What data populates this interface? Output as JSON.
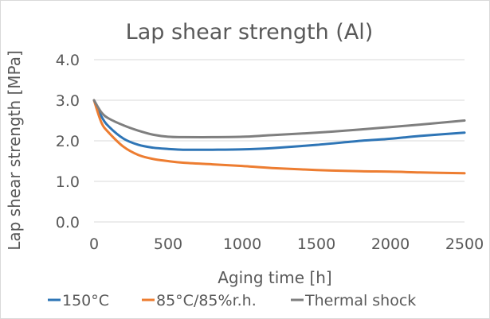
{
  "chart_data": {
    "type": "line",
    "title": "Lap shear strength (Al)",
    "xlabel": "Aging time [h]",
    "ylabel": "Lap shear strength [MPa]",
    "xlim": [
      0,
      2500
    ],
    "ylim": [
      0,
      4
    ],
    "xticks": [
      "0",
      "500",
      "1000",
      "1500",
      "2000",
      "2500"
    ],
    "yticks": [
      "0.0",
      "1.0",
      "2.0",
      "3.0",
      "4.0"
    ],
    "grid": "horizontal",
    "legend_position": "bottom",
    "series": [
      {
        "name": "150°C",
        "color": "#2e75b6",
        "x": [
          0,
          50,
          100,
          200,
          300,
          400,
          500,
          600,
          700,
          800,
          1000,
          1200,
          1500,
          1800,
          2000,
          2200,
          2500
        ],
        "values": [
          3.0,
          2.6,
          2.35,
          2.05,
          1.9,
          1.83,
          1.8,
          1.78,
          1.78,
          1.78,
          1.79,
          1.82,
          1.9,
          2.0,
          2.05,
          2.12,
          2.2
        ]
      },
      {
        "name": "85°C/85%r.h.",
        "color": "#ed7d31",
        "x": [
          0,
          50,
          100,
          200,
          300,
          400,
          500,
          600,
          800,
          1000,
          1200,
          1500,
          1800,
          2000,
          2200,
          2500
        ],
        "values": [
          3.0,
          2.45,
          2.2,
          1.85,
          1.65,
          1.55,
          1.5,
          1.46,
          1.42,
          1.38,
          1.33,
          1.28,
          1.25,
          1.24,
          1.22,
          1.2
        ]
      },
      {
        "name": "Thermal shock",
        "color": "#7f7f7f",
        "x": [
          0,
          50,
          100,
          200,
          300,
          400,
          500,
          600,
          800,
          1000,
          1200,
          1500,
          1800,
          2000,
          2200,
          2500
        ],
        "values": [
          3.0,
          2.7,
          2.55,
          2.38,
          2.25,
          2.15,
          2.1,
          2.09,
          2.09,
          2.1,
          2.14,
          2.2,
          2.28,
          2.34,
          2.4,
          2.5
        ]
      }
    ]
  }
}
